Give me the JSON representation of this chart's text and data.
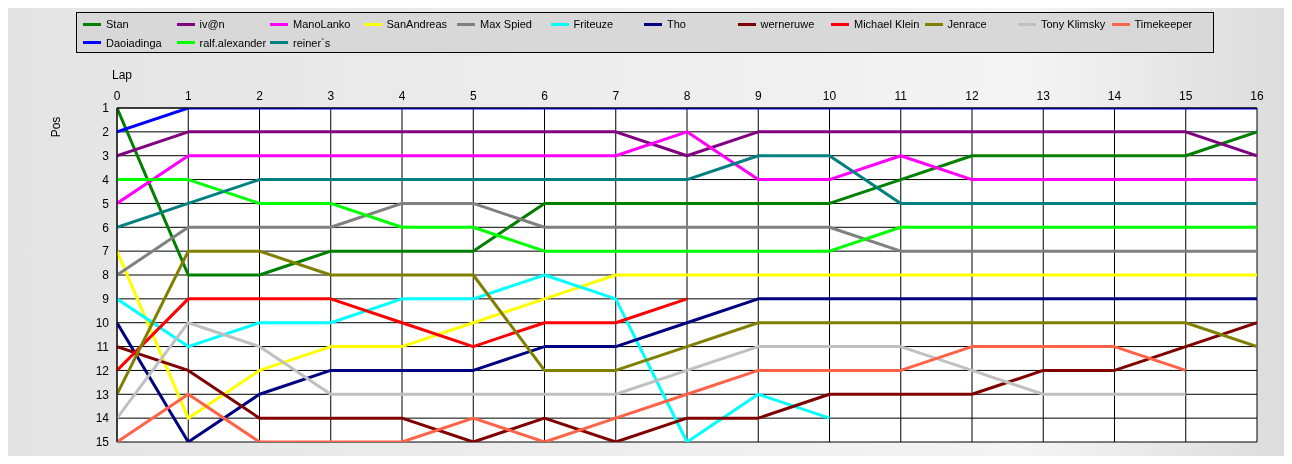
{
  "chart_data": {
    "type": "line",
    "xlabel": "Lap",
    "ylabel": "Pos",
    "x": [
      0,
      1,
      2,
      3,
      4,
      5,
      6,
      7,
      8,
      9,
      10,
      11,
      12,
      13,
      14,
      15,
      16
    ],
    "xlim": [
      0,
      16
    ],
    "xticks": [
      0,
      1,
      2,
      3,
      4,
      5,
      6,
      7,
      8,
      9,
      10,
      11,
      12,
      13,
      14,
      15,
      16
    ],
    "ylim": [
      15,
      1
    ],
    "yticks": [
      1,
      2,
      3,
      4,
      5,
      6,
      7,
      8,
      9,
      10,
      11,
      12,
      13,
      14,
      15
    ],
    "grid": true,
    "legend": "top",
    "marker": "none",
    "line_style": "solid",
    "series": [
      {
        "name": "Stan",
        "color": "#008000",
        "values": [
          1,
          8,
          8,
          7,
          7,
          7,
          5,
          5,
          5,
          5,
          5,
          4,
          3,
          3,
          3,
          3,
          2
        ]
      },
      {
        "name": "iv@n",
        "color": "#800080",
        "values": [
          3,
          2,
          2,
          2,
          2,
          2,
          2,
          2,
          3,
          2,
          2,
          2,
          2,
          2,
          2,
          2,
          3
        ]
      },
      {
        "name": "ManoLanko",
        "color": "#ff00ff",
        "values": [
          5,
          3,
          3,
          3,
          3,
          3,
          3,
          3,
          2,
          4,
          4,
          3,
          4,
          4,
          4,
          4,
          4
        ]
      },
      {
        "name": "SanAndreas",
        "color": "#ffff00",
        "values": [
          7,
          14,
          12,
          11,
          11,
          10,
          9,
          8,
          8,
          8,
          8,
          8,
          8,
          8,
          8,
          8,
          8
        ]
      },
      {
        "name": "Max Spied",
        "color": "#808080",
        "values": [
          8,
          6,
          6,
          6,
          5,
          5,
          6,
          6,
          6,
          6,
          6,
          7,
          7,
          7,
          7,
          7,
          7
        ]
      },
      {
        "name": "Friteuze",
        "color": "#00ffff",
        "values": [
          9,
          11,
          10,
          10,
          9,
          9,
          8,
          9,
          15,
          13,
          14,
          null,
          null,
          null,
          null,
          null,
          null
        ]
      },
      {
        "name": "Tho",
        "color": "#000080",
        "values": [
          10,
          15,
          13,
          12,
          12,
          12,
          11,
          11,
          10,
          9,
          9,
          9,
          9,
          9,
          9,
          9,
          9
        ]
      },
      {
        "name": "werneruwe",
        "color": "#800000",
        "values": [
          11,
          12,
          14,
          14,
          14,
          15,
          14,
          15,
          14,
          14,
          13,
          13,
          13,
          12,
          12,
          11,
          10
        ]
      },
      {
        "name": "Michael Klein",
        "color": "#ff0000",
        "values": [
          12,
          9,
          9,
          9,
          10,
          11,
          10,
          10,
          9,
          null,
          null,
          null,
          null,
          null,
          null,
          null,
          null
        ]
      },
      {
        "name": "Jenrace",
        "color": "#808000",
        "values": [
          13,
          7,
          7,
          8,
          8,
          8,
          12,
          12,
          11,
          10,
          10,
          10,
          10,
          10,
          10,
          10,
          11
        ]
      },
      {
        "name": "Tony Klimsky",
        "color": "#c0c0c0",
        "values": [
          14,
          10,
          11,
          13,
          13,
          13,
          13,
          13,
          12,
          11,
          11,
          11,
          12,
          13,
          13,
          13,
          null
        ]
      },
      {
        "name": "Timekeeper",
        "color": "#ff6347",
        "values": [
          15,
          13,
          15,
          15,
          15,
          14,
          15,
          14,
          13,
          12,
          12,
          12,
          11,
          11,
          11,
          12,
          null
        ]
      },
      {
        "name": "Daoiadinga",
        "color": "#0000ff",
        "values": [
          2,
          1,
          1,
          1,
          1,
          1,
          1,
          1,
          1,
          1,
          1,
          1,
          1,
          1,
          1,
          1,
          1
        ]
      },
      {
        "name": "ralf.alexander",
        "color": "#00ff00",
        "values": [
          4,
          4,
          5,
          5,
          6,
          6,
          7,
          7,
          7,
          7,
          7,
          6,
          6,
          6,
          6,
          6,
          6
        ]
      },
      {
        "name": "reiner`s",
        "color": "#008080",
        "values": [
          6,
          5,
          4,
          4,
          4,
          4,
          4,
          4,
          4,
          3,
          3,
          5,
          5,
          5,
          5,
          5,
          5
        ]
      }
    ]
  }
}
